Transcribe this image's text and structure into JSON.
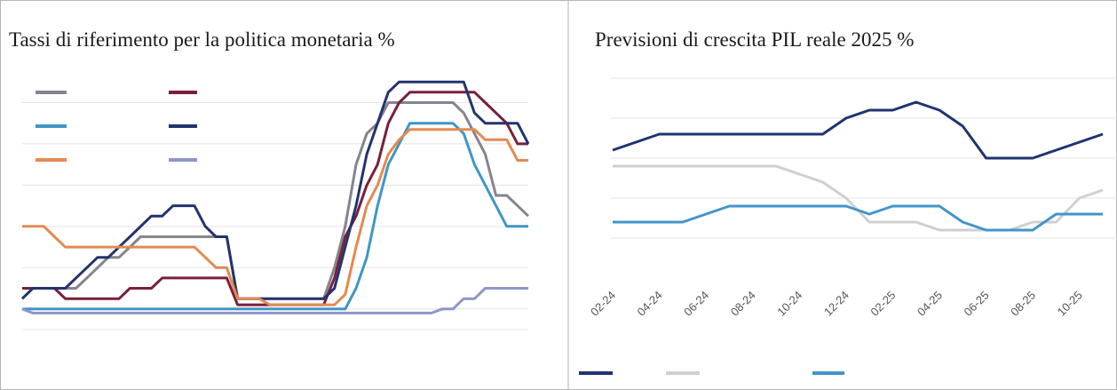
{
  "chart_data": [
    {
      "type": "line",
      "title": "Tassi di riferimento per la politica monetaria %",
      "categories": [
        null,
        null,
        null,
        null,
        null,
        null,
        null,
        null,
        null,
        null,
        null,
        null,
        null,
        null,
        null,
        null,
        null,
        null,
        null,
        null,
        null,
        null,
        null,
        null,
        null,
        null,
        null,
        null,
        null,
        null,
        null,
        null,
        null,
        null,
        null,
        null,
        null,
        null,
        null,
        null,
        null,
        null,
        null,
        null,
        null,
        null,
        null,
        null
      ],
      "ylim": [
        -0.5,
        6
      ],
      "yticks": [
        -0.5,
        0,
        1,
        2,
        3,
        4,
        5
      ],
      "grid": true,
      "series": [
        {
          "color": "#85848f",
          "values": [
            0.5,
            0.5,
            0.5,
            0.5,
            0.5,
            0.5,
            0.75,
            1,
            1.25,
            1.25,
            1.5,
            1.75,
            1.75,
            1.75,
            1.75,
            1.75,
            1.75,
            1.75,
            1.75,
            1.75,
            0.25,
            0.25,
            0.25,
            0.25,
            0.25,
            0.25,
            0.25,
            0.25,
            0.25,
            1,
            2,
            3.5,
            4.25,
            4.5,
            5,
            5,
            5,
            5,
            5,
            5,
            5,
            4.75,
            4.25,
            3.75,
            2.75,
            2.75,
            2.5,
            2.25
          ]
        },
        {
          "color": "#7a1f3a",
          "values": [
            0.5,
            0.5,
            0.5,
            0.5,
            0.25,
            0.25,
            0.25,
            0.25,
            0.25,
            0.25,
            0.5,
            0.5,
            0.5,
            0.75,
            0.75,
            0.75,
            0.75,
            0.75,
            0.75,
            0.75,
            0.1,
            0.1,
            0.1,
            0.1,
            0.1,
            0.1,
            0.1,
            0.1,
            0.1,
            0.75,
            1.75,
            2.25,
            3,
            3.5,
            4.5,
            5,
            5.25,
            5.25,
            5.25,
            5.25,
            5.25,
            5.25,
            5.25,
            5,
            4.75,
            4.5,
            4,
            4
          ]
        },
        {
          "color": "#4096c6",
          "values": [
            0,
            0,
            0,
            0,
            0,
            0,
            0,
            0,
            0,
            0,
            0,
            0,
            0,
            0,
            0,
            0,
            0,
            0,
            0,
            0,
            0,
            0,
            0,
            0,
            0,
            0,
            0,
            0,
            0,
            0,
            0,
            0.5,
            1.25,
            2.5,
            3.5,
            4,
            4.5,
            4.5,
            4.5,
            4.5,
            4.5,
            4.25,
            3.5,
            3,
            2.5,
            2,
            2,
            2
          ]
        },
        {
          "color": "#23336e",
          "values": [
            0.25,
            0.5,
            0.5,
            0.5,
            0.5,
            0.75,
            1,
            1.25,
            1.25,
            1.5,
            1.75,
            2,
            2.25,
            2.25,
            2.5,
            2.5,
            2.5,
            2,
            1.75,
            1.75,
            0.25,
            0.25,
            0.25,
            0.25,
            0.25,
            0.25,
            0.25,
            0.25,
            0.25,
            0.5,
            1.5,
            2.5,
            3.75,
            4.5,
            5.25,
            5.5,
            5.5,
            5.5,
            5.5,
            5.5,
            5.5,
            5.5,
            4.75,
            4.5,
            4.5,
            4.5,
            4.5,
            4
          ]
        },
        {
          "color": "#e48a52",
          "values": [
            2,
            2,
            2,
            1.75,
            1.5,
            1.5,
            1.5,
            1.5,
            1.5,
            1.5,
            1.5,
            1.5,
            1.5,
            1.5,
            1.5,
            1.5,
            1.5,
            1.25,
            1,
            1,
            0.25,
            0.25,
            0.25,
            0.1,
            0.1,
            0.1,
            0.1,
            0.1,
            0.1,
            0.1,
            0.35,
            1.5,
            2.5,
            3,
            3.75,
            4.1,
            4.35,
            4.35,
            4.35,
            4.35,
            4.35,
            4.35,
            4.35,
            4.1,
            4.1,
            4.1,
            3.6,
            3.6
          ]
        },
        {
          "color": "#8e95c9",
          "values": [
            0,
            -0.1,
            -0.1,
            -0.1,
            -0.1,
            -0.1,
            -0.1,
            -0.1,
            -0.1,
            -0.1,
            -0.1,
            -0.1,
            -0.1,
            -0.1,
            -0.1,
            -0.1,
            -0.1,
            -0.1,
            -0.1,
            -0.1,
            -0.1,
            -0.1,
            -0.1,
            -0.1,
            -0.1,
            -0.1,
            -0.1,
            -0.1,
            -0.1,
            -0.1,
            -0.1,
            -0.1,
            -0.1,
            -0.1,
            -0.1,
            -0.1,
            -0.1,
            -0.1,
            -0.1,
            0,
            0,
            0.25,
            0.25,
            0.5,
            0.5,
            0.5,
            0.5,
            0.5
          ]
        }
      ]
    },
    {
      "type": "line",
      "title": "Previsioni di crescita PIL reale 2025 %",
      "categories": [
        "02-24",
        null,
        "04-24",
        null,
        "06-24",
        null,
        "08-24",
        null,
        "10-24",
        null,
        "12-24",
        null,
        "02-25",
        null,
        "04-25",
        null,
        "06-25",
        null,
        "08-25",
        null,
        "10-25",
        null
      ],
      "ylim": [
        0,
        3
      ],
      "yticks": [
        0.5,
        1,
        1.5,
        2,
        2.5
      ],
      "grid": true,
      "series": [
        {
          "color": "#1f3470",
          "values": [
            1.6,
            1.7,
            1.8,
            1.8,
            1.8,
            1.8,
            1.8,
            1.8,
            1.8,
            1.8,
            2,
            2.1,
            2.1,
            2.2,
            2.1,
            1.9,
            1.5,
            1.5,
            1.5,
            1.6,
            1.7,
            1.8
          ]
        },
        {
          "color": "#d0d0d0",
          "values": [
            1.4,
            1.4,
            1.4,
            1.4,
            1.4,
            1.4,
            1.4,
            1.4,
            1.3,
            1.2,
            1,
            0.7,
            0.7,
            0.7,
            0.6,
            0.6,
            0.6,
            0.6,
            0.7,
            0.7,
            1,
            1.1
          ]
        },
        {
          "color": "#4395c9",
          "values": [
            0.7,
            0.7,
            0.7,
            0.7,
            0.8,
            0.9,
            0.9,
            0.9,
            0.9,
            0.9,
            0.9,
            0.8,
            0.9,
            0.9,
            0.9,
            0.7,
            0.6,
            0.6,
            0.6,
            0.8,
            0.8,
            0.8
          ]
        }
      ]
    }
  ]
}
